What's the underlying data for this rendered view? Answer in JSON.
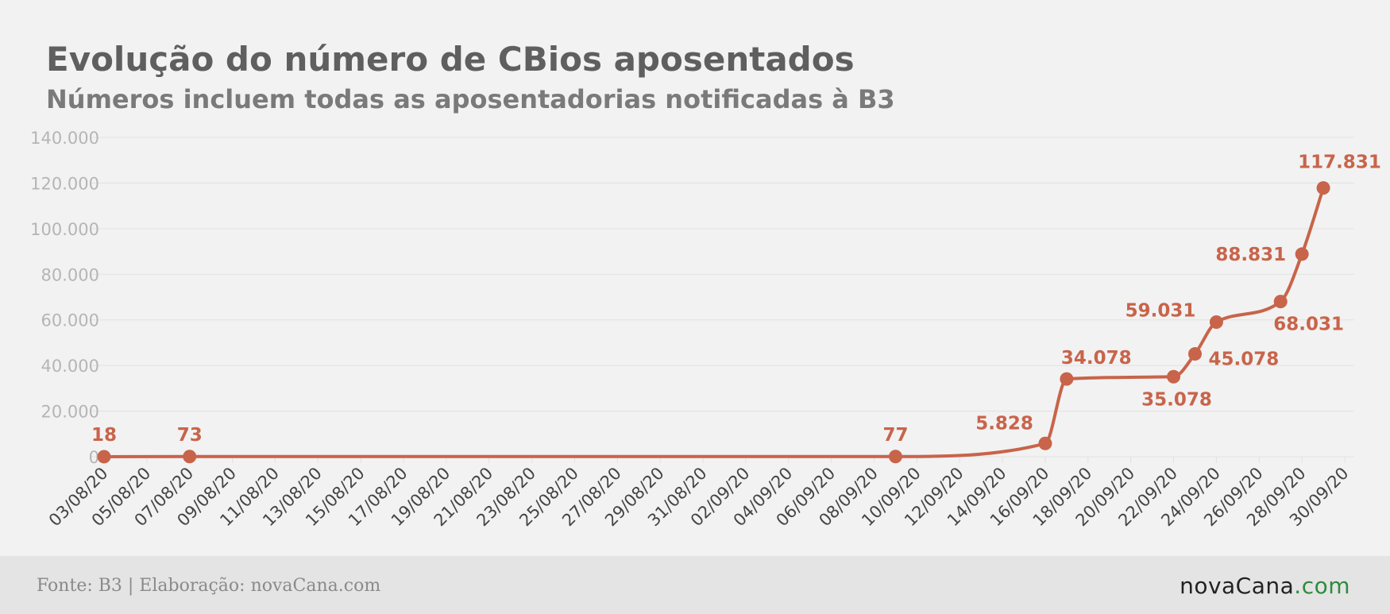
{
  "chart_data": {
    "type": "line",
    "title": "Evolução do número de CBios aposentados",
    "subtitle": "Números incluem todas as aposentadorias notificadas à B3",
    "xlabel": "",
    "ylabel": "",
    "ylim": [
      0,
      140000
    ],
    "yticks": [
      "0",
      "20.000",
      "40.000",
      "60.000",
      "80.000",
      "100.000",
      "120.000",
      "140.000"
    ],
    "xticks": [
      "03/08/20",
      "05/08/20",
      "07/08/20",
      "09/08/20",
      "11/08/20",
      "13/08/20",
      "15/08/20",
      "17/08/20",
      "19/08/20",
      "21/08/20",
      "23/08/20",
      "25/08/20",
      "27/08/20",
      "29/08/20",
      "31/08/20",
      "02/09/20",
      "04/09/20",
      "06/09/20",
      "08/09/20",
      "10/09/20",
      "12/09/20",
      "14/09/20",
      "16/09/20",
      "18/09/20",
      "20/09/20",
      "22/09/20",
      "24/09/20",
      "26/09/20",
      "28/09/20",
      "30/09/20"
    ],
    "grid": true,
    "series": [
      {
        "points": [
          {
            "x": "03/08/20",
            "y": 18,
            "label": "18"
          },
          {
            "x": "07/08/20",
            "y": 73,
            "label": "73"
          },
          {
            "x": "09/09/20",
            "y": 77,
            "label": "77"
          },
          {
            "x": "16/09/20",
            "y": 5828,
            "label": "5.828"
          },
          {
            "x": "17/09/20",
            "y": 34078,
            "label": "34.078"
          },
          {
            "x": "22/09/20",
            "y": 35078,
            "label": "35.078"
          },
          {
            "x": "23/09/20",
            "y": 45078,
            "label": "45.078"
          },
          {
            "x": "24/09/20",
            "y": 59031,
            "label": "59.031"
          },
          {
            "x": "27/09/20",
            "y": 68031,
            "label": "68.031"
          },
          {
            "x": "28/09/20",
            "y": 88831,
            "label": "88.831"
          },
          {
            "x": "29/09/20",
            "y": 117831,
            "label": "117.831"
          }
        ]
      }
    ]
  },
  "colors": {
    "line": "#c8644a",
    "grid": "#e1e1e1",
    "tick": "#b5b5b5",
    "axis_label": "#444444"
  },
  "footer": {
    "source": "Fonte: B3 | Elaboração: novaCana.com",
    "brand_name": "novaCana",
    "brand_tld": ".com"
  }
}
